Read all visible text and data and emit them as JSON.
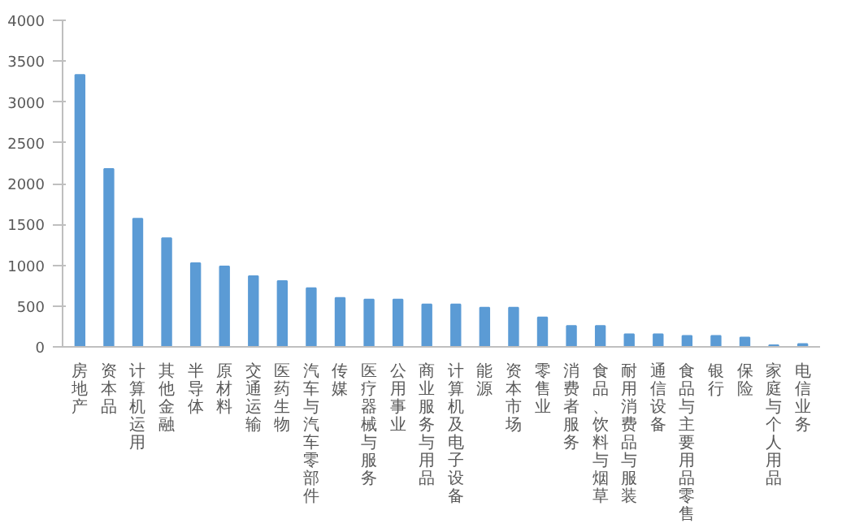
{
  "chart_data": {
    "type": "bar",
    "categories": [
      "房地产",
      "资本品",
      "计算机运用",
      "其他金融",
      "半导体",
      "原材料",
      "交通运输",
      "医药生物",
      "汽车与汽车零部件",
      "传媒",
      "医疗器械与服务",
      "公用事业",
      "商业服务与用品",
      "计算机及电子设备",
      "能源",
      "资本市场",
      "零售业",
      "消费者服务",
      "食品、饮料与烟草",
      "耐用消费品与服装",
      "通信设备",
      "食品与主要用品零售",
      "银行",
      "保险",
      "家庭与个人用品",
      "电信业务"
    ],
    "values": [
      3330,
      2180,
      1570,
      1330,
      1025,
      985,
      865,
      805,
      720,
      600,
      580,
      580,
      520,
      520,
      480,
      480,
      360,
      255,
      255,
      155,
      155,
      135,
      135,
      115,
      20,
      35
    ],
    "color": "#5b9bd5",
    "ylim": [
      0,
      4000
    ],
    "yticks": [
      0,
      500,
      1000,
      1500,
      2000,
      2500,
      3000,
      3500,
      4000
    ],
    "grid": false
  }
}
